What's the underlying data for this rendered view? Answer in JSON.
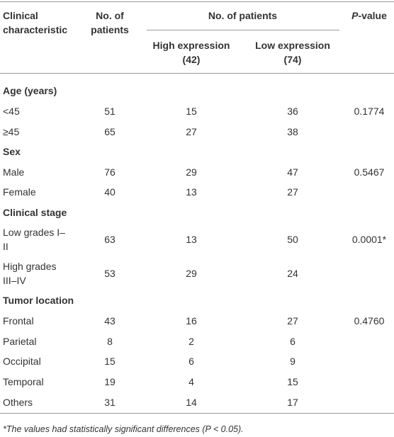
{
  "header": {
    "characteristic": "Clinical characteristic",
    "patients": "No. of patients",
    "group": "No. of patients",
    "high": "High expression (42)",
    "low": "Low expression (74)",
    "pvalue_italic": "P",
    "pvalue_rest": "-value"
  },
  "sections": [
    {
      "title": "Age (years)",
      "rows": [
        [
          "<45",
          51,
          15,
          36,
          "0.1774"
        ],
        [
          "≥45",
          65,
          27,
          38,
          null
        ]
      ]
    },
    {
      "title": "Sex",
      "rows": [
        [
          "Male",
          76,
          29,
          47,
          "0.5467"
        ],
        [
          "Female",
          40,
          13,
          27,
          null
        ]
      ]
    },
    {
      "title": "Clinical stage",
      "rows": [
        [
          "Low grades I–II",
          63,
          13,
          50,
          "0.0001*"
        ],
        [
          "High grades III–IV",
          53,
          29,
          24,
          null
        ]
      ]
    },
    {
      "title": "Tumor location",
      "rows": [
        [
          "Frontal",
          43,
          16,
          27,
          "0.4760"
        ],
        [
          "Parietal",
          8,
          2,
          6,
          null
        ],
        [
          "Occipital",
          15,
          6,
          9,
          null
        ],
        [
          "Temporal",
          19,
          4,
          15,
          null
        ],
        [
          "Others",
          31,
          14,
          17,
          null
        ]
      ]
    }
  ],
  "footnote": "*The values had statistically significant differences (P < 0.05)."
}
